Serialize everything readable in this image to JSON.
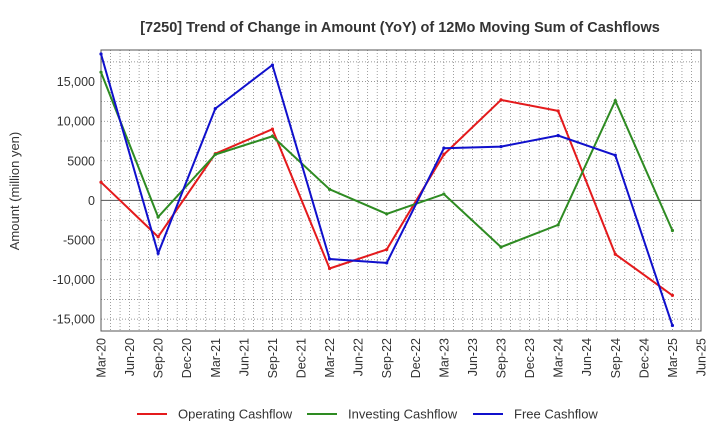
{
  "chart_data": {
    "type": "line",
    "title": "[7250]  Trend of Change in Amount (YoY) of 12Mo Moving Sum of Cashflows",
    "xlabel": "",
    "ylabel": "Amount (million yen)",
    "ylim": [
      -16500,
      19000
    ],
    "yticks": [
      15000,
      10000,
      5000,
      0,
      -5000,
      -10000,
      -15000
    ],
    "ytick_labels": [
      "15,000",
      "10,000",
      "5000",
      "0",
      "-5000",
      "-10,000",
      "-15,000"
    ],
    "categories": [
      "Mar-20",
      "Jun-20",
      "Sep-20",
      "Dec-20",
      "Mar-21",
      "Jun-21",
      "Sep-21",
      "Dec-21",
      "Mar-22",
      "Jun-22",
      "Sep-22",
      "Dec-22",
      "Mar-23",
      "Jun-23",
      "Sep-23",
      "Dec-23",
      "Mar-24",
      "Jun-24",
      "Sep-24",
      "Dec-24",
      "Mar-25",
      "Jun-25"
    ],
    "legend_position": "bottom",
    "grid": true,
    "series": [
      {
        "name": "Operating Cashflow",
        "color": "#e41a1c",
        "points": [
          [
            0,
            2300
          ],
          [
            2,
            -4600
          ],
          [
            4,
            5900
          ],
          [
            6,
            9000
          ],
          [
            8,
            -8600
          ],
          [
            10,
            -6200
          ],
          [
            12,
            5800
          ],
          [
            14,
            12700
          ],
          [
            16,
            11300
          ],
          [
            18,
            -6800
          ],
          [
            20,
            -12000
          ]
        ]
      },
      {
        "name": "Investing Cashflow",
        "color": "#2e8b22",
        "points": [
          [
            0,
            16200
          ],
          [
            2,
            -2100
          ],
          [
            4,
            5800
          ],
          [
            6,
            8100
          ],
          [
            8,
            1400
          ],
          [
            10,
            -1700
          ],
          [
            12,
            800
          ],
          [
            14,
            -5900
          ],
          [
            16,
            -3100
          ],
          [
            18,
            12600
          ],
          [
            20,
            -3800
          ]
        ]
      },
      {
        "name": "Free Cashflow",
        "color": "#1010cc",
        "points": [
          [
            0,
            18500
          ],
          [
            2,
            -6700
          ],
          [
            4,
            11600
          ],
          [
            6,
            17100
          ],
          [
            8,
            -7400
          ],
          [
            10,
            -7900
          ],
          [
            12,
            6600
          ],
          [
            14,
            6800
          ],
          [
            16,
            8200
          ],
          [
            18,
            5700
          ],
          [
            20,
            -15800
          ]
        ]
      }
    ]
  }
}
